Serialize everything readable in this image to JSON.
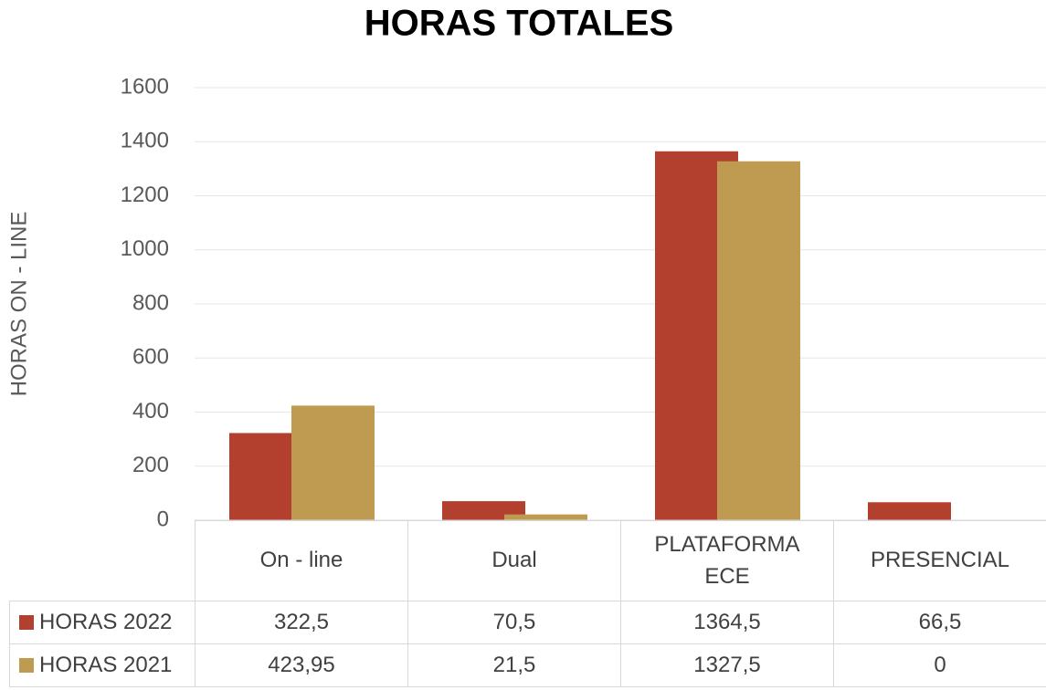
{
  "chart_data": {
    "type": "bar",
    "title": "HORAS TOTALES",
    "y_label": "HORAS ON - LINE",
    "categories": [
      "On - line",
      "Dual",
      "PLATAFORMA ECE",
      "PRESENCIAL"
    ],
    "series": [
      {
        "name": "HORAS 2022",
        "color": "#b33f2e",
        "values": [
          322.5,
          70.5,
          1364.5,
          66.5
        ],
        "value_labels": [
          "322,5",
          "70,5",
          "1364,5",
          "66,5"
        ]
      },
      {
        "name": "HORAS 2021",
        "color": "#bf9b52",
        "values": [
          423.95,
          21.5,
          1327.5,
          0
        ],
        "value_labels": [
          "423,95",
          "21,5",
          "1327,5",
          "0"
        ]
      }
    ],
    "ylim": [
      0,
      1600
    ],
    "yticks": [
      0,
      200,
      400,
      600,
      800,
      1000,
      1200,
      1400,
      1600
    ],
    "grid": true,
    "data_table": true
  }
}
